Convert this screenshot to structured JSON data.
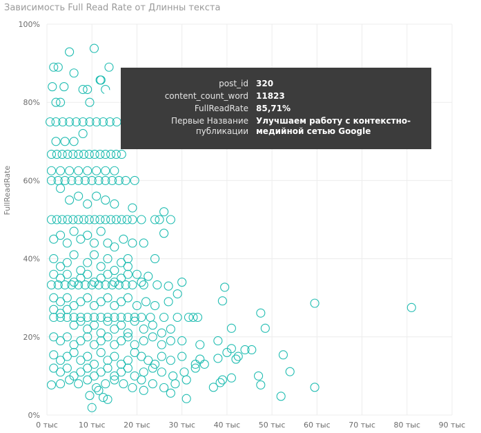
{
  "chart_data": {
    "type": "scatter",
    "title": "Зависимость Full Read Rate от Длинны текста",
    "xlabel": "",
    "ylabel": "FullReadRate",
    "xlim": [
      0,
      90000
    ],
    "ylim": [
      0,
      100
    ],
    "x_ticks": [
      "0 тыс",
      "10 тыс",
      "20 тыс",
      "30 тыс",
      "40 тыс",
      "50 тыс",
      "60 тыс",
      "70 тыс",
      "80 тыс",
      "90 тыс"
    ],
    "y_ticks": [
      "0%",
      "20%",
      "40%",
      "60%",
      "80%",
      "100%"
    ],
    "grid": true,
    "color": "#1fbcb1",
    "points": [
      [
        1500,
        89
      ],
      [
        2500,
        89
      ],
      [
        3800,
        84
      ],
      [
        5000,
        92.9
      ],
      [
        10500,
        93.8
      ],
      [
        13800,
        89
      ],
      [
        1200,
        84
      ],
      [
        2000,
        80
      ],
      [
        3000,
        80
      ],
      [
        6000,
        87.5
      ],
      [
        8000,
        83.3
      ],
      [
        9000,
        83.3
      ],
      [
        12000,
        85.7
      ],
      [
        13000,
        83.3
      ],
      [
        9500,
        80
      ],
      [
        700,
        75
      ],
      [
        2000,
        75
      ],
      [
        3500,
        75
      ],
      [
        5000,
        75
      ],
      [
        6500,
        75
      ],
      [
        8000,
        75
      ],
      [
        9500,
        75
      ],
      [
        11000,
        75
      ],
      [
        12500,
        75
      ],
      [
        14000,
        75
      ],
      [
        15500,
        75
      ],
      [
        1000,
        66.7
      ],
      [
        2200,
        66.7
      ],
      [
        3400,
        66.7
      ],
      [
        4600,
        66.7
      ],
      [
        5800,
        66.7
      ],
      [
        7000,
        66.7
      ],
      [
        8200,
        66.7
      ],
      [
        9400,
        66.7
      ],
      [
        10600,
        66.7
      ],
      [
        11800,
        66.7
      ],
      [
        13000,
        66.7
      ],
      [
        14200,
        66.7
      ],
      [
        15400,
        66.7
      ],
      [
        16600,
        66.7
      ],
      [
        1000,
        62.5
      ],
      [
        3000,
        62.5
      ],
      [
        5000,
        62.5
      ],
      [
        7000,
        62.5
      ],
      [
        9000,
        62.5
      ],
      [
        11000,
        62.5
      ],
      [
        13000,
        62.5
      ],
      [
        15000,
        62.5
      ],
      [
        1000,
        60
      ],
      [
        2500,
        60
      ],
      [
        4000,
        60
      ],
      [
        5500,
        60
      ],
      [
        7000,
        60
      ],
      [
        8500,
        60
      ],
      [
        10000,
        60
      ],
      [
        11500,
        60
      ],
      [
        13000,
        60
      ],
      [
        14500,
        60
      ],
      [
        16000,
        60
      ],
      [
        17500,
        60
      ],
      [
        19500,
        60
      ],
      [
        1000,
        50
      ],
      [
        2200,
        50
      ],
      [
        3400,
        50
      ],
      [
        4600,
        50
      ],
      [
        5800,
        50
      ],
      [
        7000,
        50
      ],
      [
        8200,
        50
      ],
      [
        9400,
        50
      ],
      [
        10600,
        50
      ],
      [
        11800,
        50
      ],
      [
        13000,
        50
      ],
      [
        14200,
        50
      ],
      [
        15400,
        50
      ],
      [
        16600,
        50
      ],
      [
        17800,
        50
      ],
      [
        19000,
        50
      ],
      [
        21000,
        50
      ],
      [
        24000,
        50
      ],
      [
        27500,
        50
      ],
      [
        1000,
        33.3
      ],
      [
        2500,
        33.3
      ],
      [
        4000,
        33.3
      ],
      [
        5500,
        33.3
      ],
      [
        7000,
        33.3
      ],
      [
        8500,
        33.3
      ],
      [
        10000,
        33.3
      ],
      [
        11500,
        33.3
      ],
      [
        13000,
        33.3
      ],
      [
        14500,
        33.3
      ],
      [
        16000,
        33.3
      ],
      [
        17500,
        33.3
      ],
      [
        19000,
        33.3
      ],
      [
        21500,
        33.3
      ],
      [
        24500,
        33.3
      ],
      [
        1500,
        25
      ],
      [
        3000,
        25
      ],
      [
        4500,
        25
      ],
      [
        6000,
        25
      ],
      [
        7500,
        25
      ],
      [
        9000,
        25
      ],
      [
        10500,
        25
      ],
      [
        12000,
        25
      ],
      [
        13500,
        25
      ],
      [
        15000,
        25
      ],
      [
        16500,
        25
      ],
      [
        18000,
        25
      ],
      [
        19500,
        25
      ],
      [
        21000,
        25
      ],
      [
        23000,
        25
      ],
      [
        26000,
        25
      ],
      [
        29000,
        25
      ],
      [
        31500,
        25
      ],
      [
        32500,
        25
      ],
      [
        33500,
        25
      ],
      [
        2000,
        70
      ],
      [
        4000,
        70
      ],
      [
        6000,
        70
      ],
      [
        8000,
        72
      ],
      [
        3000,
        58
      ],
      [
        5000,
        55
      ],
      [
        7000,
        56
      ],
      [
        9000,
        54
      ],
      [
        11000,
        56
      ],
      [
        13000,
        55
      ],
      [
        15000,
        54
      ],
      [
        19000,
        53
      ],
      [
        26000,
        52
      ],
      [
        25000,
        50
      ],
      [
        26000,
        46.5
      ],
      [
        1500,
        45
      ],
      [
        3000,
        46
      ],
      [
        4500,
        44
      ],
      [
        6000,
        47
      ],
      [
        7500,
        45
      ],
      [
        9000,
        46
      ],
      [
        10500,
        44
      ],
      [
        12000,
        47
      ],
      [
        13500,
        44
      ],
      [
        15000,
        43
      ],
      [
        17000,
        45
      ],
      [
        19000,
        44
      ],
      [
        21500,
        44
      ],
      [
        24000,
        40
      ],
      [
        18000,
        40
      ],
      [
        1500,
        40
      ],
      [
        3000,
        38
      ],
      [
        4500,
        39
      ],
      [
        6000,
        41
      ],
      [
        7500,
        37
      ],
      [
        9000,
        39
      ],
      [
        10500,
        41
      ],
      [
        12000,
        38
      ],
      [
        13500,
        40
      ],
      [
        15000,
        37
      ],
      [
        16500,
        39
      ],
      [
        18000,
        38
      ],
      [
        20000,
        36
      ],
      [
        22500,
        35.5
      ],
      [
        1500,
        36
      ],
      [
        3000,
        35
      ],
      [
        4500,
        36
      ],
      [
        6000,
        34
      ],
      [
        7500,
        35
      ],
      [
        9000,
        36
      ],
      [
        10500,
        34
      ],
      [
        12000,
        35
      ],
      [
        13500,
        36
      ],
      [
        15000,
        34
      ],
      [
        16500,
        35
      ],
      [
        18000,
        36
      ],
      [
        21000,
        34
      ],
      [
        27000,
        33
      ],
      [
        30000,
        34
      ],
      [
        1500,
        30
      ],
      [
        3000,
        29
      ],
      [
        4500,
        30
      ],
      [
        6000,
        28
      ],
      [
        7500,
        29
      ],
      [
        9000,
        30
      ],
      [
        10500,
        28
      ],
      [
        12000,
        29
      ],
      [
        13500,
        30
      ],
      [
        15000,
        28
      ],
      [
        16500,
        29
      ],
      [
        18000,
        30
      ],
      [
        20000,
        28
      ],
      [
        22000,
        29
      ],
      [
        24000,
        28
      ],
      [
        27000,
        29
      ],
      [
        29000,
        31
      ],
      [
        1500,
        27
      ],
      [
        3000,
        26
      ],
      [
        4500,
        27
      ],
      [
        6000,
        23
      ],
      [
        7500,
        24
      ],
      [
        9000,
        22
      ],
      [
        10500,
        23
      ],
      [
        12000,
        21
      ],
      [
        13500,
        24
      ],
      [
        15000,
        22
      ],
      [
        16500,
        23
      ],
      [
        18000,
        21
      ],
      [
        19500,
        24
      ],
      [
        21500,
        22
      ],
      [
        23500,
        23
      ],
      [
        25500,
        21
      ],
      [
        27500,
        22
      ],
      [
        1500,
        20
      ],
      [
        3000,
        19
      ],
      [
        4500,
        20
      ],
      [
        6000,
        18
      ],
      [
        7500,
        19
      ],
      [
        9000,
        20
      ],
      [
        10500,
        18
      ],
      [
        12000,
        19
      ],
      [
        13500,
        20
      ],
      [
        15000,
        18
      ],
      [
        16500,
        19
      ],
      [
        18000,
        20
      ],
      [
        19500,
        18
      ],
      [
        21500,
        19
      ],
      [
        23500,
        20
      ],
      [
        25500,
        18
      ],
      [
        27500,
        19
      ],
      [
        30000,
        19
      ],
      [
        34000,
        18
      ],
      [
        38000,
        19
      ],
      [
        40000,
        16
      ],
      [
        1500,
        15.4
      ],
      [
        3000,
        14
      ],
      [
        4500,
        15
      ],
      [
        6000,
        16
      ],
      [
        7500,
        14
      ],
      [
        9000,
        15
      ],
      [
        10500,
        13
      ],
      [
        12000,
        16
      ],
      [
        13500,
        14
      ],
      [
        15000,
        15
      ],
      [
        16500,
        13
      ],
      [
        18000,
        14
      ],
      [
        19500,
        16
      ],
      [
        21000,
        15
      ],
      [
        22500,
        14
      ],
      [
        24000,
        13
      ],
      [
        25500,
        15
      ],
      [
        27500,
        14
      ],
      [
        30000,
        15
      ],
      [
        33000,
        13
      ],
      [
        35000,
        13
      ],
      [
        38000,
        14.5
      ],
      [
        1500,
        12
      ],
      [
        3000,
        11
      ],
      [
        4500,
        12
      ],
      [
        6000,
        10
      ],
      [
        7500,
        11
      ],
      [
        9000,
        12
      ],
      [
        10500,
        10
      ],
      [
        12000,
        11
      ],
      [
        13500,
        12
      ],
      [
        15000,
        10
      ],
      [
        16500,
        11
      ],
      [
        18000,
        12
      ],
      [
        19500,
        10
      ],
      [
        21500,
        11
      ],
      [
        23500,
        12
      ],
      [
        25500,
        11
      ],
      [
        28000,
        10
      ],
      [
        30500,
        11
      ],
      [
        33000,
        12
      ],
      [
        1000,
        7.7
      ],
      [
        3000,
        8
      ],
      [
        5000,
        9
      ],
      [
        7000,
        8
      ],
      [
        9000,
        9
      ],
      [
        11000,
        7
      ],
      [
        13000,
        8
      ],
      [
        15000,
        9
      ],
      [
        17000,
        8
      ],
      [
        19000,
        7
      ],
      [
        21000,
        9
      ],
      [
        23500,
        8
      ],
      [
        26000,
        7
      ],
      [
        28500,
        8
      ],
      [
        31000,
        9
      ],
      [
        39000,
        9
      ],
      [
        41000,
        9.5
      ],
      [
        9500,
        5
      ],
      [
        11500,
        6.3
      ],
      [
        13500,
        4
      ],
      [
        12500,
        4.5
      ],
      [
        10000,
        1.9
      ],
      [
        21500,
        6.3
      ],
      [
        27500,
        5.6
      ],
      [
        31000,
        4.2
      ],
      [
        37000,
        7.1
      ],
      [
        41000,
        22.2
      ],
      [
        39000,
        29.2
      ],
      [
        39500,
        32.7
      ],
      [
        47500,
        26.1
      ],
      [
        48500,
        22.2
      ],
      [
        59500,
        28.6
      ],
      [
        81000,
        27.5
      ],
      [
        44000,
        16.7
      ],
      [
        45500,
        16.7
      ],
      [
        42500,
        15
      ],
      [
        41000,
        17
      ],
      [
        52500,
        15.4
      ],
      [
        54000,
        11.1
      ],
      [
        47000,
        10
      ],
      [
        47500,
        7.7
      ],
      [
        52000,
        4.8
      ],
      [
        59500,
        7.1
      ],
      [
        34000,
        14.3
      ],
      [
        42000,
        14.3
      ],
      [
        38500,
        8.3
      ]
    ],
    "highlight_point": [
      11823,
      85.71
    ],
    "tooltip": {
      "rows": [
        {
          "key": "post_id",
          "value": "320"
        },
        {
          "key": "content_count_word",
          "value": "11823"
        },
        {
          "key": "FullReadRate",
          "value": "85,71%"
        },
        {
          "key": "Первые Название публикации",
          "value": "Улучшаем работу с контекстно-медийной сетью Google"
        }
      ]
    }
  }
}
